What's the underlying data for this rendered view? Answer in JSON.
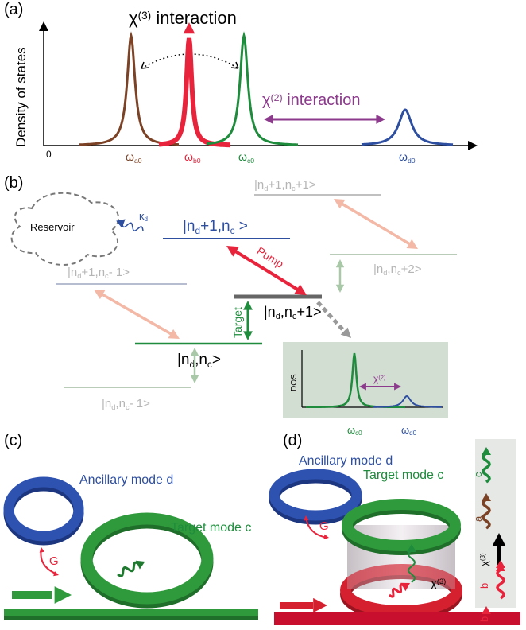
{
  "panel_labels": [
    "(a)",
    "(b)",
    "(c)",
    "(d)"
  ],
  "panel_a": {
    "y_axis_label": "Density of states",
    "origin": "0",
    "chi3": [
      "χ",
      "(3)",
      " interaction"
    ],
    "chi2": [
      "χ",
      "(2)",
      " interaction"
    ],
    "peaks": [
      [
        "ω",
        "a0"
      ],
      [
        "ω",
        "b0"
      ],
      [
        "ω",
        "c0"
      ],
      [
        "ω",
        "d0"
      ]
    ]
  },
  "panel_b": {
    "reservoir": "Reservoir",
    "kappa": [
      "κ",
      "d"
    ],
    "pump": "Pump",
    "target": "Target",
    "levels": [
      [
        "|n",
        "d",
        "+1,n",
        "c",
        "+1>"
      ],
      [
        "|n",
        "d",
        "+1,n",
        "c",
        " >"
      ],
      [
        "|n",
        "d",
        ",n",
        "c",
        "+2>"
      ],
      [
        "|n",
        "d",
        "+1,n",
        "c",
        "- 1>"
      ],
      [
        "|n",
        "d",
        ",n",
        "c",
        "+1>"
      ],
      [
        "|n",
        "d",
        ",n",
        "c",
        ">"
      ],
      [
        "|n",
        "d",
        ",n",
        "c",
        "- 1>"
      ]
    ],
    "inset": {
      "axis": "DOS",
      "chi2": [
        "χ",
        "(2)"
      ],
      "omega_c": [
        "ω",
        "c0"
      ],
      "omega_d": [
        "ω",
        "d0"
      ]
    }
  },
  "panel_c": {
    "ancillary": "Ancillary mode d",
    "target": "Target mode c",
    "coupling": "G"
  },
  "panel_d": {
    "ancillary": "Ancillary mode d",
    "target": "Target mode c",
    "coupling": "G",
    "chi3": [
      "χ",
      "(3)"
    ],
    "strip": {
      "c": "c",
      "a": "a",
      "chi3": [
        "χ",
        "(3)"
      ],
      "b1": "b",
      "b2": "b"
    }
  }
}
